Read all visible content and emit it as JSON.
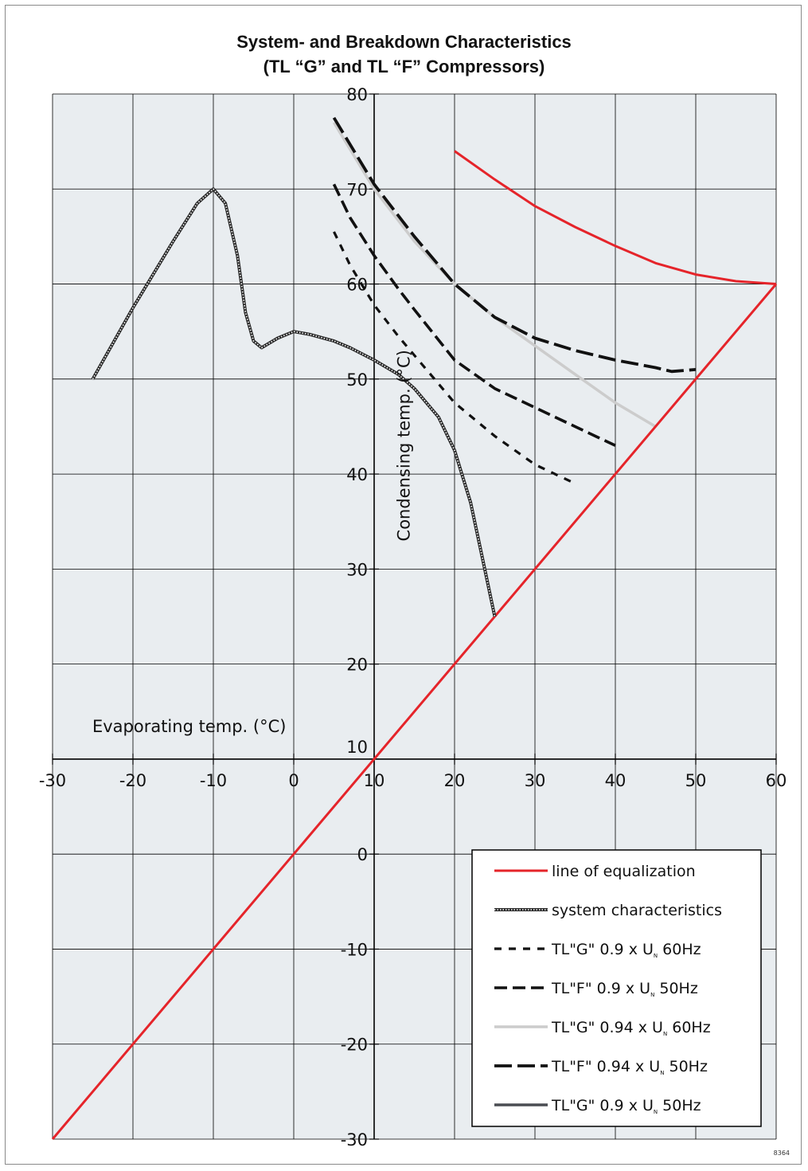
{
  "chart_data": {
    "type": "line",
    "title": "System- and Breakdown Characteristics",
    "subtitle": "(TL “G” and TL “F” Compressors)",
    "xlabel": "Evaporating temp. (°C)",
    "ylabel": "Condensing temp. (°C)",
    "xlim": [
      -30,
      60
    ],
    "ylim": [
      -30,
      80
    ],
    "x_ticks": [
      -30,
      -20,
      -10,
      0,
      10,
      20,
      30,
      40,
      50,
      60
    ],
    "y_ticks": [
      -30,
      -20,
      -10,
      0,
      10,
      20,
      30,
      40,
      50,
      60,
      70,
      80
    ],
    "grid": true,
    "legend_position": "bottom-right",
    "figure_id": "8364",
    "colors": {
      "background": "#e9edf0",
      "grid": "#000000",
      "red": "#e5242a",
      "gray": "#cccccc",
      "black": "#111111",
      "dark": "#4a4d52"
    },
    "series": [
      {
        "name": "line of equalization",
        "style": "solid-red",
        "color": "#e5242a",
        "segments": [
          [
            [
              -30,
              -30
            ],
            [
              60,
              60
            ]
          ],
          [
            [
              20,
              74
            ],
            [
              25,
              71
            ],
            [
              30,
              68.2
            ],
            [
              35,
              66
            ],
            [
              40,
              64
            ],
            [
              45,
              62.2
            ],
            [
              50,
              61
            ],
            [
              55,
              60.3
            ],
            [
              60,
              60
            ]
          ]
        ]
      },
      {
        "name": "system characteristics",
        "style": "textured",
        "color": "#444444",
        "segments": [
          [
            [
              -25,
              50
            ],
            [
              -20,
              57.5
            ],
            [
              -15,
              64.5
            ],
            [
              -12,
              68.5
            ],
            [
              -10,
              70
            ],
            [
              -8.5,
              68.5
            ],
            [
              -7,
              63
            ],
            [
              -6,
              57
            ],
            [
              -5,
              54
            ],
            [
              -4,
              53.3
            ],
            [
              -2,
              54.3
            ],
            [
              0,
              55
            ],
            [
              2,
              54.7
            ],
            [
              5,
              54
            ],
            [
              7,
              53.3
            ],
            [
              10,
              52
            ],
            [
              13,
              50.5
            ],
            [
              15,
              49
            ],
            [
              18,
              46
            ],
            [
              20,
              42.5
            ],
            [
              22,
              37
            ],
            [
              23.5,
              31
            ],
            [
              25,
              25
            ]
          ]
        ]
      },
      {
        "name": "TL\"G\" 0.9 x U_N 60Hz",
        "legend_label": "TL\"G\" 0.9 x U",
        "legend_suffix": "60Hz",
        "style": "dotted-short",
        "color": "#111111",
        "segments": [
          [
            [
              5,
              65.5
            ],
            [
              7,
              62
            ],
            [
              10,
              57.8
            ],
            [
              13,
              54.5
            ],
            [
              15,
              52.5
            ],
            [
              20,
              47.5
            ],
            [
              25,
              44
            ],
            [
              30,
              41
            ],
            [
              35,
              39
            ]
          ]
        ]
      },
      {
        "name": "TL\"F\" 0.9 x U_N 50Hz",
        "legend_label": "TL\"F\" 0.9 x U",
        "legend_suffix": "50Hz",
        "style": "dash-medium",
        "color": "#111111",
        "segments": [
          [
            [
              5,
              70.5
            ],
            [
              7,
              67
            ],
            [
              10,
              63
            ],
            [
              13,
              59.5
            ],
            [
              15,
              57.3
            ],
            [
              20,
              52
            ],
            [
              25,
              49
            ],
            [
              30,
              47
            ],
            [
              35,
              45
            ],
            [
              40,
              43
            ]
          ]
        ]
      },
      {
        "name": "TL\"G\" 0.94 x U_N 60Hz",
        "legend_label": "TL\"G\" 0.94 x U",
        "legend_suffix": "60Hz",
        "style": "solid-gray",
        "color": "#cccccc",
        "segments": [
          [
            [
              5,
              77
            ],
            [
              10,
              70
            ],
            [
              15,
              64.5
            ],
            [
              20,
              60
            ],
            [
              25,
              56.5
            ],
            [
              30,
              53.5
            ],
            [
              35,
              50.5
            ],
            [
              40,
              47.5
            ],
            [
              45,
              45
            ]
          ]
        ]
      },
      {
        "name": "TL\"F\" 0.94 x U_N 50Hz",
        "legend_label": "TL\"F\" 0.94 x U",
        "legend_suffix": "50Hz",
        "style": "dash-long",
        "color": "#111111",
        "segments": [
          [
            [
              5,
              77.5
            ],
            [
              10,
              70.5
            ],
            [
              15,
              65
            ],
            [
              20,
              60
            ],
            [
              25,
              56.5
            ],
            [
              30,
              54.3
            ],
            [
              35,
              53
            ],
            [
              40,
              52
            ],
            [
              45,
              51.2
            ],
            [
              47,
              50.8
            ],
            [
              50,
              51
            ]
          ]
        ]
      },
      {
        "name": "TL\"G\" 0.9 x U_N 50Hz",
        "legend_label": "TL\"G\" 0.9 x U",
        "legend_suffix": "50Hz",
        "style": "solid-dark",
        "color": "#4a4d52",
        "segments": []
      }
    ]
  }
}
